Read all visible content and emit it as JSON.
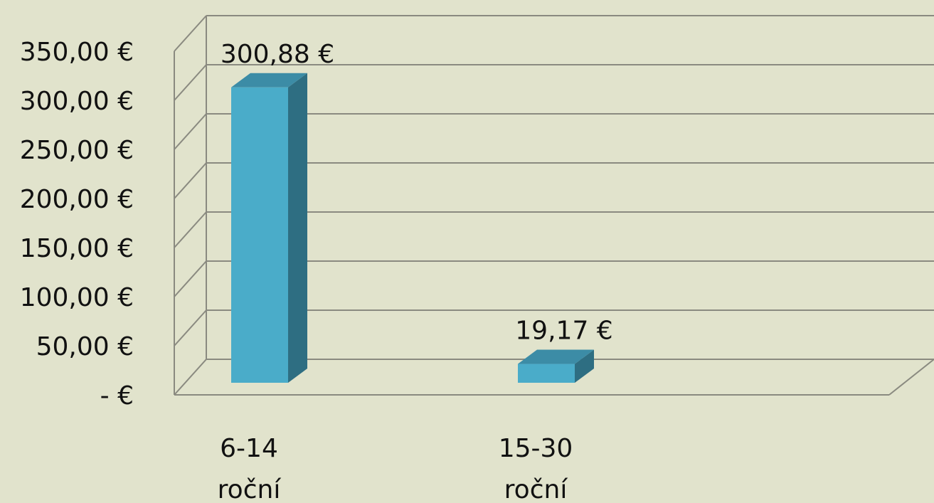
{
  "chart_data": {
    "type": "bar3d",
    "categories": [
      [
        "6-14",
        "roční"
      ],
      [
        "15-30",
        "roční"
      ]
    ],
    "values": [
      300.88,
      19.17
    ],
    "value_labels": [
      "300,88 €",
      "19,17 €"
    ],
    "ylim": [
      0,
      350
    ],
    "yticks": [
      {
        "value": 0,
        "label": "-   €"
      },
      {
        "value": 50,
        "label": "50,00 €"
      },
      {
        "value": 100,
        "label": "100,00 €"
      },
      {
        "value": 150,
        "label": "150,00 €"
      },
      {
        "value": 200,
        "label": "200,00 €"
      },
      {
        "value": 250,
        "label": "250,00 €"
      },
      {
        "value": 300,
        "label": "300,00 €"
      },
      {
        "value": 350,
        "label": "350,00 €"
      }
    ],
    "grid": true,
    "colors": {
      "front": "#4aacc9",
      "side": "#2e6e82",
      "top": "#3c8ca6"
    }
  }
}
